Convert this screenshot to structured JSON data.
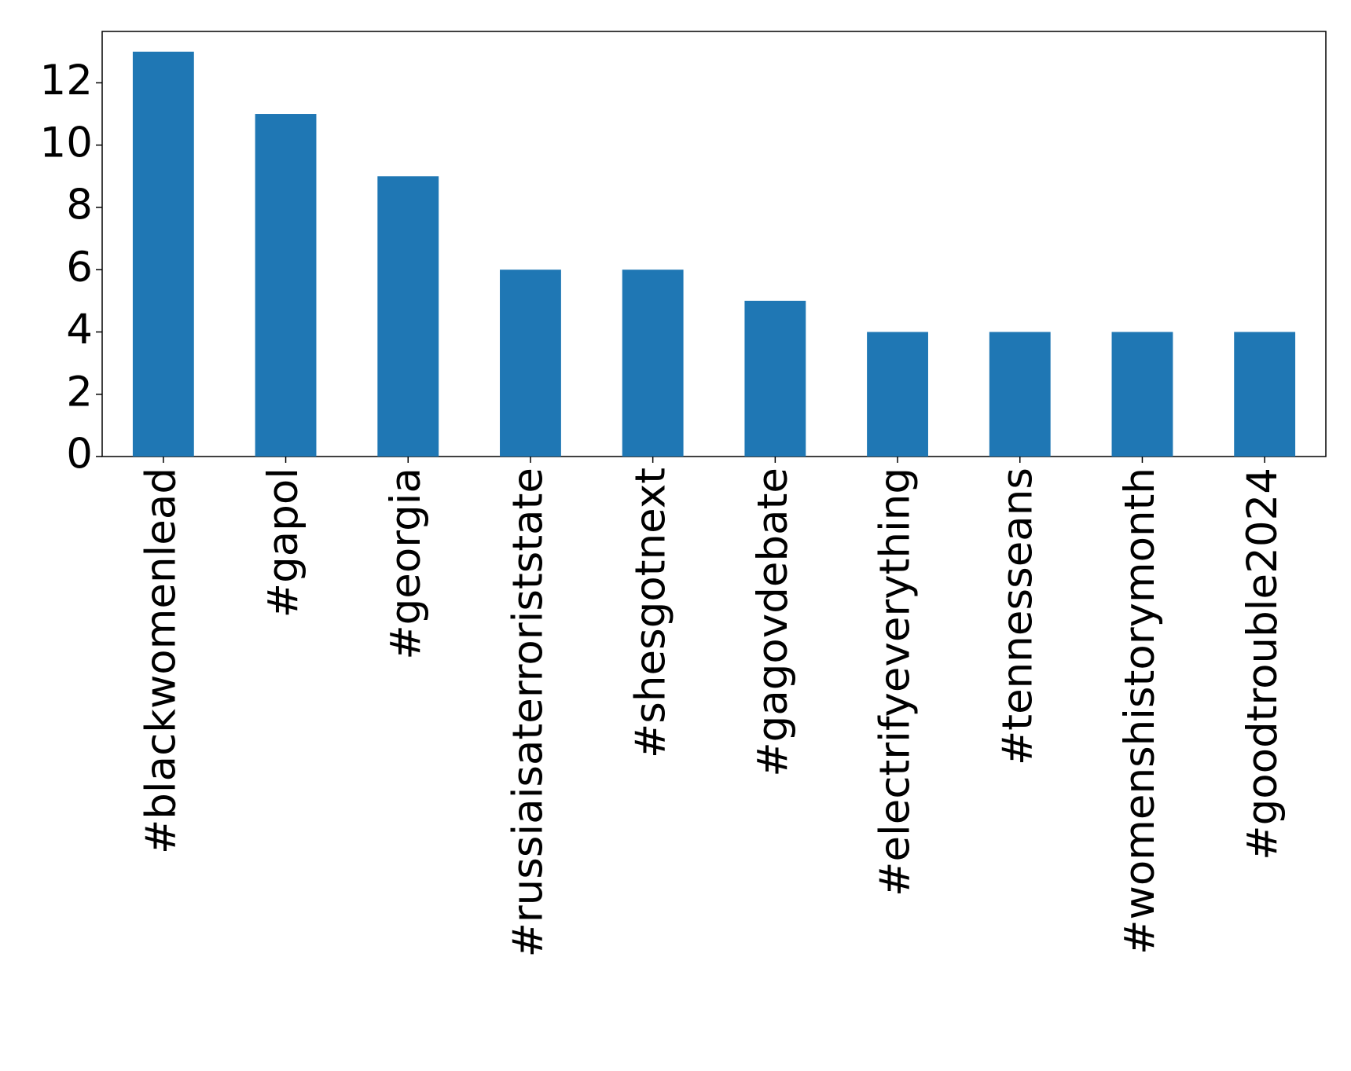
{
  "chart_data": {
    "type": "bar",
    "categories": [
      "#blackwomenlead",
      "#gapol",
      "#georgia",
      "#russiaisaterroriststate",
      "#shesgotnext",
      "#gagovdebate",
      "#electrifyeverything",
      "#tennesseans",
      "#womenshistorymonth",
      "#goodtrouble2024"
    ],
    "values": [
      13,
      11,
      9,
      6,
      6,
      5,
      4,
      4,
      4,
      4
    ],
    "color": "#1f77b4",
    "ylim": [
      0,
      13.65
    ],
    "yticks": [
      0,
      2,
      4,
      6,
      8,
      10,
      12
    ],
    "grid": false
  }
}
